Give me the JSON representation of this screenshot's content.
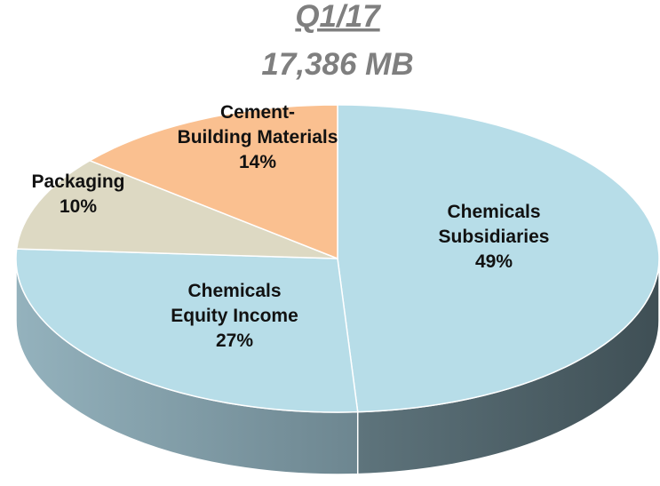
{
  "chart_data": {
    "type": "pie",
    "title": "Q1/17",
    "subtitle": "17,386 MB",
    "categories": [
      "Chemicals\nSubsidiaries",
      "Chemicals\nEquity Income",
      "Packaging",
      "Cement-\nBuilding Materials"
    ],
    "values": [
      49,
      27,
      10,
      14
    ],
    "value_labels": [
      "49%",
      "27%",
      "10%",
      "14%"
    ],
    "colors": [
      "#b7dde8",
      "#b7dde8",
      "#ddd9c3",
      "#fac090"
    ]
  }
}
